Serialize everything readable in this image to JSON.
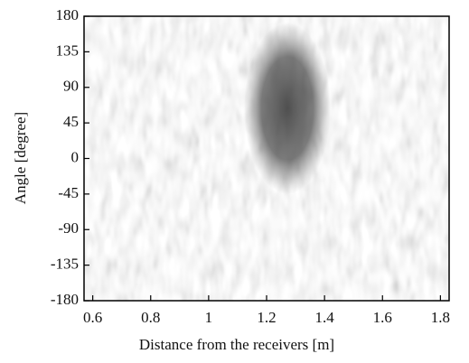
{
  "chart_data": {
    "type": "intensity-map",
    "xlabel": "Distance from the receivers [m]",
    "ylabel": "Angle [degree]",
    "xlim": [
      0.57,
      1.83
    ],
    "xticks": [
      0.6,
      0.8,
      1,
      1.2,
      1.4,
      1.6,
      1.8
    ],
    "ylim": [
      -180,
      180
    ],
    "yticks": [
      180,
      135,
      90,
      45,
      0,
      -45,
      -90,
      -135,
      -180
    ]
  }
}
